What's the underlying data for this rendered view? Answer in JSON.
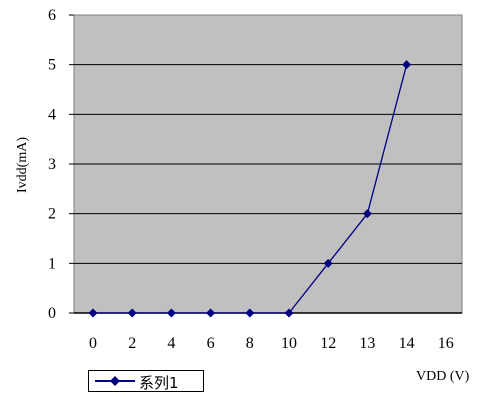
{
  "chart_data": {
    "type": "line",
    "x": [
      0,
      2,
      4,
      6,
      8,
      10,
      12,
      13,
      14
    ],
    "series": [
      {
        "name": "系列1",
        "values": [
          0,
          0,
          0,
          0,
          0,
          0,
          1,
          2,
          5
        ]
      }
    ],
    "x_ticks": [
      "0",
      "2",
      "4",
      "6",
      "8",
      "10",
      "12",
      "13",
      "14",
      "16"
    ],
    "y_ticks": [
      "0",
      "1",
      "2",
      "3",
      "4",
      "5",
      "6"
    ],
    "ylim": [
      0,
      6
    ],
    "xlabel": "VDD (V)",
    "ylabel": "Ivdd(mA)",
    "grid": true,
    "legend": "bottom-left",
    "colors": {
      "plot_bg": "#c0c0c0",
      "series": "#000080",
      "grid": "#000000"
    }
  }
}
